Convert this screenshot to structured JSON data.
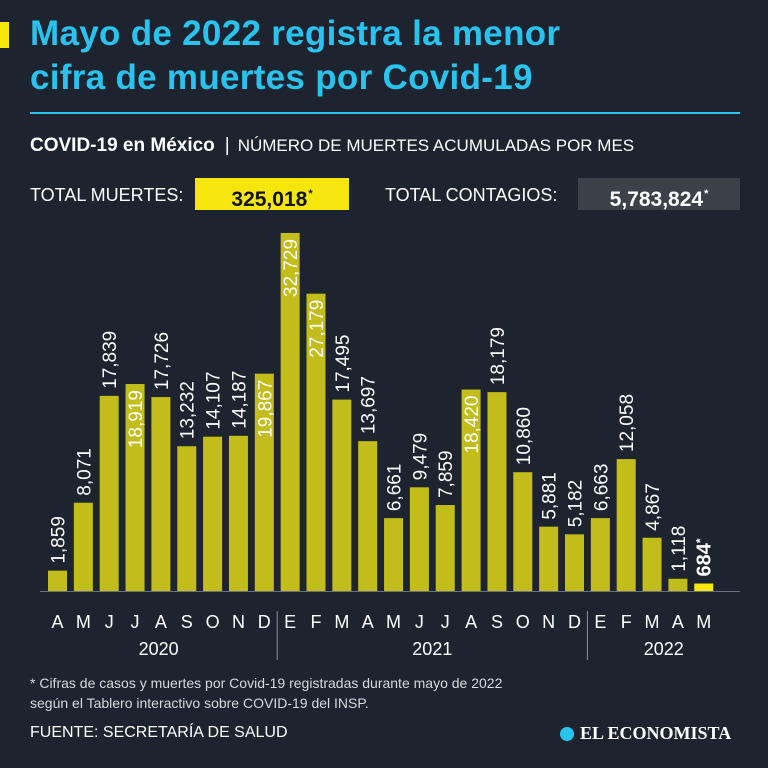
{
  "headline": {
    "line1": "Mayo de 2022 registra la menor",
    "line2": "cifra de muertes por Covid-19"
  },
  "subtitle": {
    "bold": "COVID-19 en México",
    "separator": "|",
    "rest": "NÚMERO DE MUERTES ACUMULADAS POR MES"
  },
  "totals": {
    "deaths_label": "TOTAL MUERTES:",
    "deaths_value": "325,018",
    "contagios_label": "TOTAL CONTAGIOS:",
    "contagios_value": "5,783,824",
    "asterisk": "*"
  },
  "colors": {
    "background": "#1d242f",
    "bar": "#c3bd1b",
    "bar_highlight": "#f6e60d",
    "headline": "#29c3ef"
  },
  "chart_data": {
    "type": "bar",
    "title": "NÚMERO DE MUERTES ACUMULADAS POR MES",
    "categories": [
      "A",
      "M",
      "J",
      "J",
      "A",
      "S",
      "O",
      "N",
      "D",
      "E",
      "F",
      "M",
      "A",
      "M",
      "J",
      "J",
      "A",
      "S",
      "O",
      "N",
      "D",
      "E",
      "F",
      "M",
      "A",
      "M"
    ],
    "values": [
      1859,
      8071,
      17839,
      18919,
      17726,
      13232,
      14107,
      14187,
      19867,
      32729,
      27179,
      17495,
      13697,
      6661,
      9479,
      7859,
      18420,
      18179,
      10860,
      5881,
      5182,
      6663,
      12058,
      4867,
      1118,
      684
    ],
    "labels": [
      "1,859",
      "8,071",
      "17,839",
      "18,919",
      "17,726",
      "13,232",
      "14,107",
      "14,187",
      "19,867",
      "32,729",
      "27,179",
      "17,495",
      "13,697",
      "6,661",
      "9,479",
      "7,859",
      "18,420",
      "18,179",
      "10,860",
      "5,881",
      "5,182",
      "6,663",
      "12,058",
      "4,867",
      "1,118",
      "684"
    ],
    "highlight_index": 25,
    "highlight_asterisk": "*",
    "years": [
      {
        "label": "2020",
        "start": 0,
        "end": 8
      },
      {
        "label": "2021",
        "start": 9,
        "end": 20
      },
      {
        "label": "2022",
        "start": 21,
        "end": 25
      }
    ],
    "ylim": [
      0,
      33000
    ],
    "xlabel": "",
    "ylabel": ""
  },
  "footnote": {
    "line1": "* Cifras de casos y muertes por Covid-19 registradas durante mayo de 2022",
    "line2": "según el Tablero interactivo sobre COVID-19 del INSP."
  },
  "source": "FUENTE: SECRETARÍA DE SALUD",
  "logo": "EL ECONOMISTA"
}
